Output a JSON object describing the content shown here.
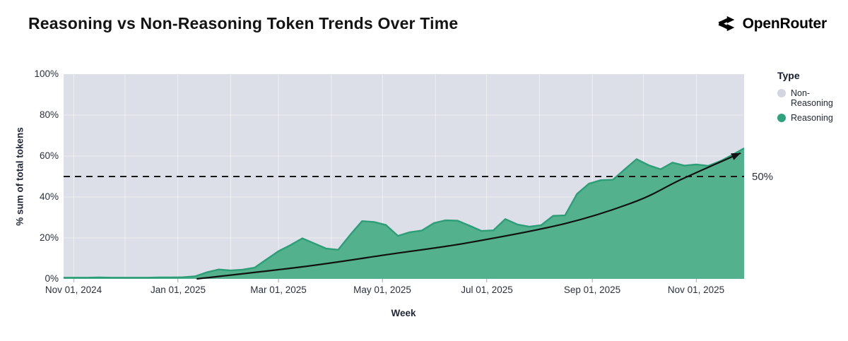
{
  "header": {
    "title": "Reasoning vs Non-Reasoning Token Trends Over Time",
    "brand_name": "OpenRouter"
  },
  "legend": {
    "title": "Type",
    "items": [
      {
        "label": "Non-Reasoning",
        "color": "#d3d5e1"
      },
      {
        "label": "Reasoning",
        "color": "#2da27c"
      }
    ]
  },
  "chart_data": {
    "type": "area",
    "stacked_percent": true,
    "title": "Reasoning vs Non-Reasoning Token Trends Over Time",
    "xlabel": "Week",
    "ylabel": "% sum of total tokens",
    "ylim": [
      0,
      100
    ],
    "grid": "on",
    "legend_position": "right",
    "y_ticks": [
      {
        "pct": 0,
        "label": "0%"
      },
      {
        "pct": 20,
        "label": "20%"
      },
      {
        "pct": 40,
        "label": "40%"
      },
      {
        "pct": 60,
        "label": "60%"
      },
      {
        "pct": 80,
        "label": "80%"
      },
      {
        "pct": 100,
        "label": "100%"
      }
    ],
    "x_domain": {
      "start": "2024-10-26",
      "end": "2025-11-29"
    },
    "x_ticks": [
      {
        "date": "2024-11-01",
        "label": "Nov 01, 2024"
      },
      {
        "date": "2025-01-01",
        "label": "Jan 01, 2025"
      },
      {
        "date": "2025-03-01",
        "label": "Mar 01, 2025"
      },
      {
        "date": "2025-05-01",
        "label": "May 01, 2025"
      },
      {
        "date": "2025-07-01",
        "label": "Jul 01, 2025"
      },
      {
        "date": "2025-09-01",
        "label": "Sep 01, 2025"
      },
      {
        "date": "2025-11-01",
        "label": "Nov 01, 2025"
      }
    ],
    "series": [
      {
        "name": "Reasoning",
        "fill": "#53b18e",
        "stroke": "#2d9e77",
        "week_start": "2024-10-26",
        "week_step_days": 7,
        "values": [
          0.6,
          0.6,
          0.6,
          0.7,
          0.6,
          0.6,
          0.6,
          0.6,
          0.7,
          0.7,
          0.8,
          1.2,
          3.2,
          4.6,
          4.1,
          4.5,
          5.5,
          9.5,
          13.5,
          16.5,
          19.8,
          17.3,
          14.8,
          14.2,
          21.5,
          28.2,
          27.8,
          26.3,
          21.0,
          22.8,
          23.6,
          27.2,
          28.6,
          28.4,
          26.0,
          23.4,
          23.7,
          29.2,
          26.6,
          25.5,
          26.2,
          30.8,
          31.0,
          41.5,
          46.5,
          48.2,
          48.4,
          53.5,
          58.5,
          55.5,
          53.5,
          56.8,
          55.3,
          55.9,
          55.2,
          57.5,
          60.5,
          63.8
        ]
      },
      {
        "name": "Non-Reasoning",
        "fill": "#dcdfe7",
        "values_rule": "100 minus Reasoning (remainder of stacked 100% area)"
      }
    ],
    "reference_line": {
      "value": 50,
      "label": "50%",
      "style": "dashed",
      "color": "#151515"
    },
    "trend_arrow": {
      "color": "#111111",
      "points": [
        [
          "2025-01-12",
          0
        ],
        [
          "2025-03-16",
          6
        ],
        [
          "2025-05-05",
          12
        ],
        [
          "2025-06-19",
          17.5
        ],
        [
          "2025-08-16",
          27
        ],
        [
          "2025-09-27",
          38
        ],
        [
          "2025-10-23",
          48.5
        ],
        [
          "2025-11-27",
          61.5
        ]
      ]
    }
  }
}
